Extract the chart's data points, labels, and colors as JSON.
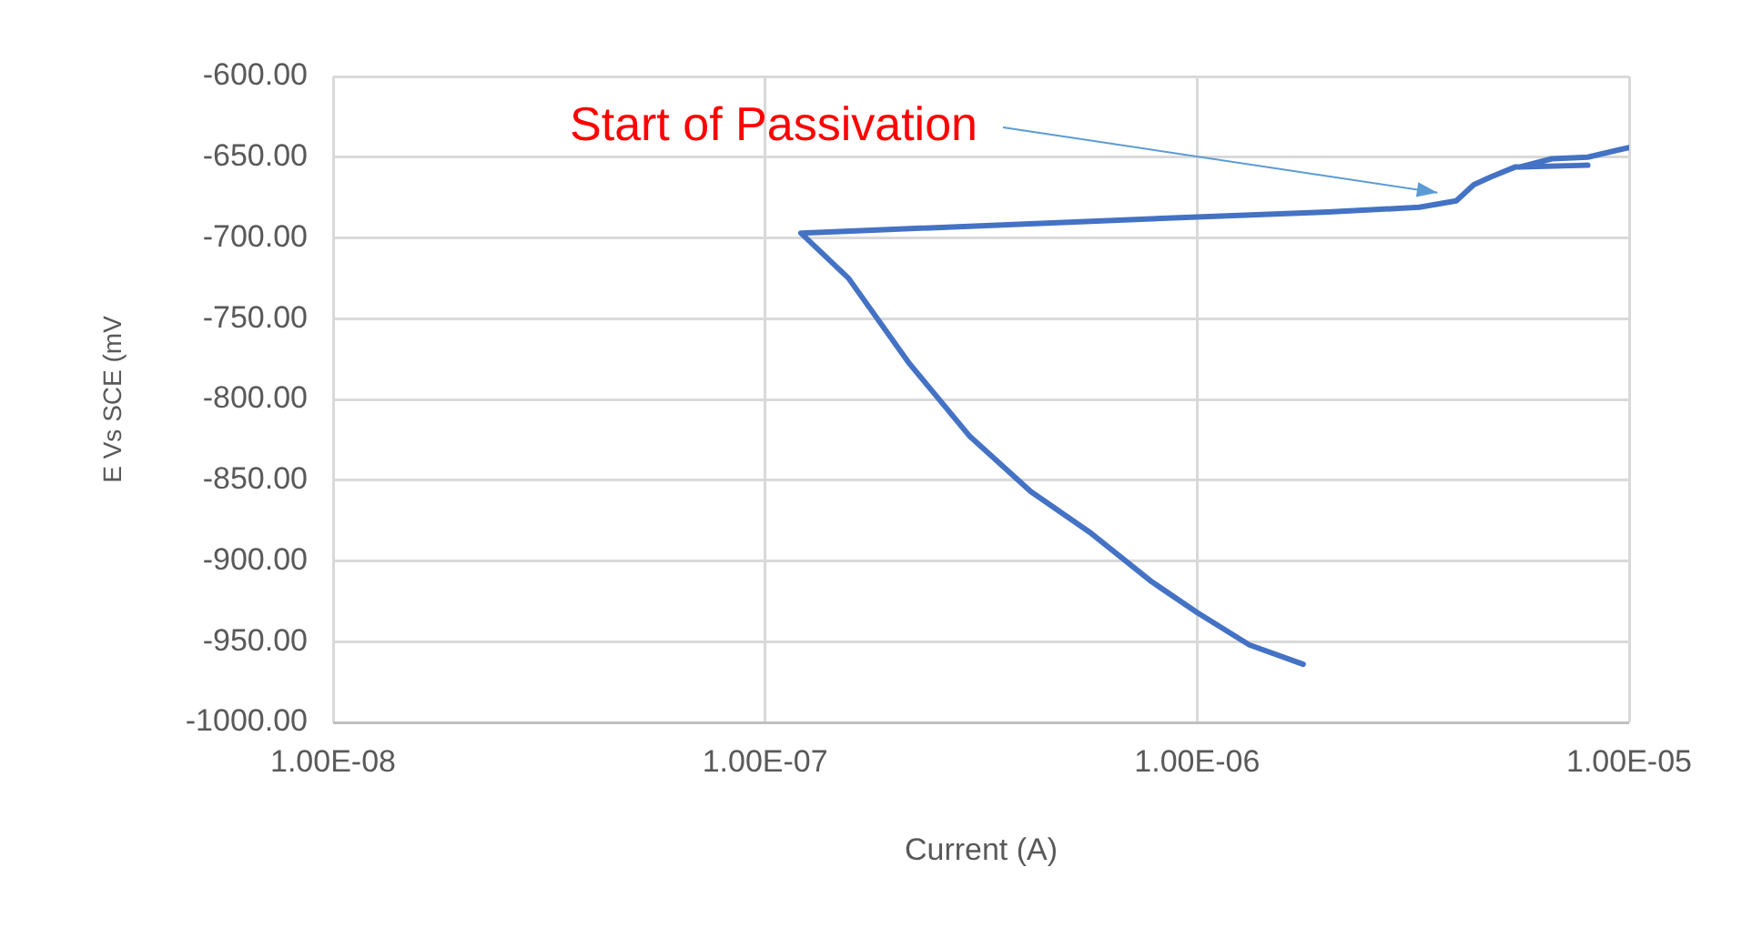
{
  "chart_data": {
    "type": "line",
    "xlabel": "Current (A)",
    "ylabel": "E Vs SCE (mV",
    "log": "x",
    "grid": true,
    "legend": false,
    "marker": "none",
    "line_style": "solid",
    "xlim": [
      1e-08,
      1e-05
    ],
    "xticks": [
      {
        "value": 1e-08,
        "label": "1.00E-08"
      },
      {
        "value": 1e-07,
        "label": "1.00E-07"
      },
      {
        "value": 1e-06,
        "label": "1.00E-06"
      },
      {
        "value": 1e-05,
        "label": "1.00E-05"
      }
    ],
    "ylim": [
      -1000,
      -600
    ],
    "yticks": [
      {
        "value": -1000,
        "label": "-1000.00"
      },
      {
        "value": -950,
        "label": "-950.00"
      },
      {
        "value": -900,
        "label": "-900.00"
      },
      {
        "value": -850,
        "label": "-850.00"
      },
      {
        "value": -800,
        "label": "-800.00"
      },
      {
        "value": -750,
        "label": "-750.00"
      },
      {
        "value": -700,
        "label": "-700.00"
      },
      {
        "value": -650,
        "label": "-650.00"
      },
      {
        "value": -600,
        "label": "-600.00"
      }
    ],
    "series": [
      {
        "color": "#4472c4",
        "x": [
          1.76e-06,
          1.32e-06,
          1e-06,
          7.86e-07,
          5.69e-07,
          4.12e-07,
          2.98e-07,
          2.16e-07,
          1.56e-07,
          1.21e-07,
          1e-06,
          2.01e-06,
          3.27e-06,
          3.98e-06,
          4.37e-06,
          4.81e-06,
          5.46e-06,
          8.02e-06,
          5.6e-06,
          6.62e-06,
          8.02e-06,
          1e-05
        ],
        "values": [
          -964,
          -952,
          -932,
          -913,
          -883,
          -857,
          -823,
          -778,
          -725,
          -697,
          -687,
          -684,
          -681,
          -677,
          -667,
          -662,
          -656,
          -655,
          -656,
          -651,
          -650,
          -644
        ]
      }
    ],
    "annotations": [
      {
        "text": "Start of Passivation",
        "x": 3.6e-06,
        "y": -672
      }
    ]
  }
}
